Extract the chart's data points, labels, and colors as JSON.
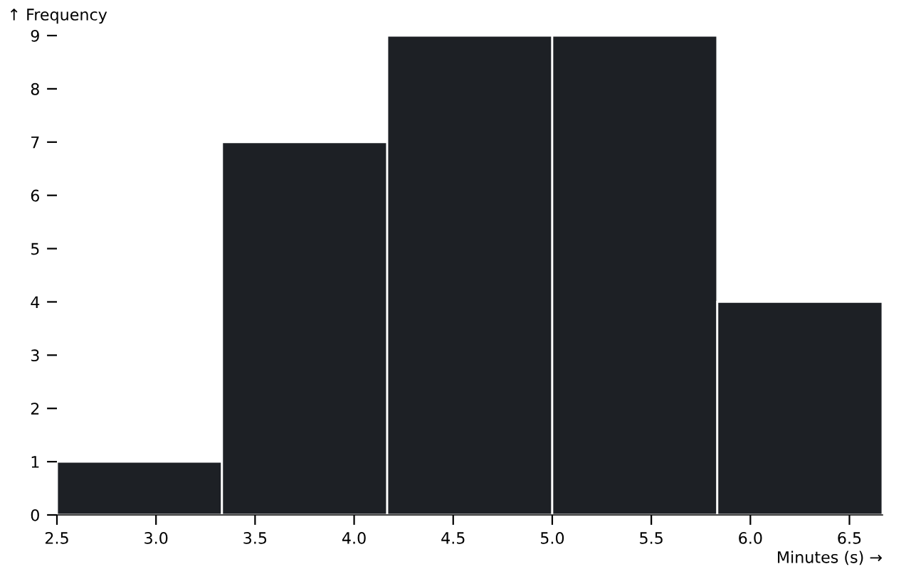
{
  "chart_data": {
    "type": "histogram",
    "xlabel": "Minutes (s) →",
    "ylabel": "↑ Frequency",
    "bins": [
      2.5,
      3.333,
      4.167,
      5.0,
      5.833,
      6.667
    ],
    "values": [
      1,
      7,
      9,
      9,
      4
    ],
    "color": "#1d2025",
    "xlim": [
      2.5,
      6.667
    ],
    "xticks": [
      2.5,
      {
        "value": 3,
        "label": "3.0"
      },
      3.5,
      {
        "value": 4,
        "label": "4.0"
      },
      4.5,
      {
        "value": 5,
        "label": "5.0"
      },
      5.5,
      {
        "value": 6,
        "label": "6.0"
      },
      6.5
    ],
    "ylim": [
      0,
      9
    ],
    "yticks": [
      0,
      1,
      2,
      3,
      4,
      5,
      6,
      7,
      8,
      9
    ],
    "grid": false
  }
}
